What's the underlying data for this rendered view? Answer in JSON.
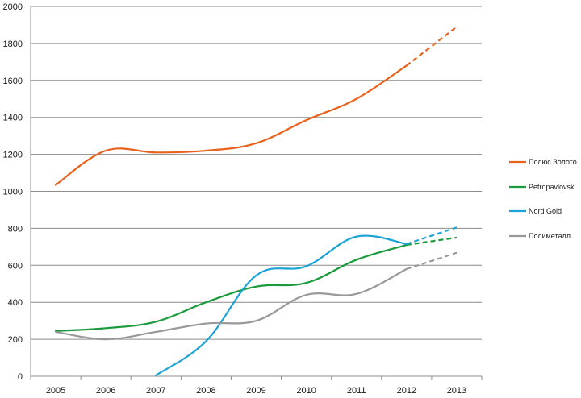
{
  "chart_data": {
    "type": "line",
    "title": "",
    "xlabel": "",
    "ylabel": "",
    "categories": [
      "2005",
      "2006",
      "2007",
      "2008",
      "2009",
      "2010",
      "2011",
      "2012",
      "2013"
    ],
    "ylim": [
      0,
      2000
    ],
    "yticks": [
      0,
      200,
      400,
      600,
      800,
      1000,
      1200,
      1400,
      1600,
      1800,
      2000
    ],
    "grid": true,
    "legend_position": "right",
    "forecast_from": "2012",
    "series": [
      {
        "name": "Полюс Золото",
        "color": "#e8621c",
        "values": [
          1035,
          1220,
          1210,
          1220,
          1260,
          1385,
          1500,
          1680,
          1890
        ]
      },
      {
        "name": "Petropavlovsk",
        "color": "#1a9a3c",
        "values": [
          245,
          260,
          295,
          400,
          485,
          505,
          630,
          710,
          750
        ]
      },
      {
        "name": "Nord Gold",
        "color": "#1aa3d4",
        "values": [
          null,
          null,
          5,
          190,
          545,
          595,
          755,
          715,
          805
        ]
      },
      {
        "name": "Полиметалл",
        "color": "#999999",
        "values": [
          240,
          200,
          240,
          285,
          300,
          440,
          445,
          580,
          668
        ]
      }
    ]
  }
}
